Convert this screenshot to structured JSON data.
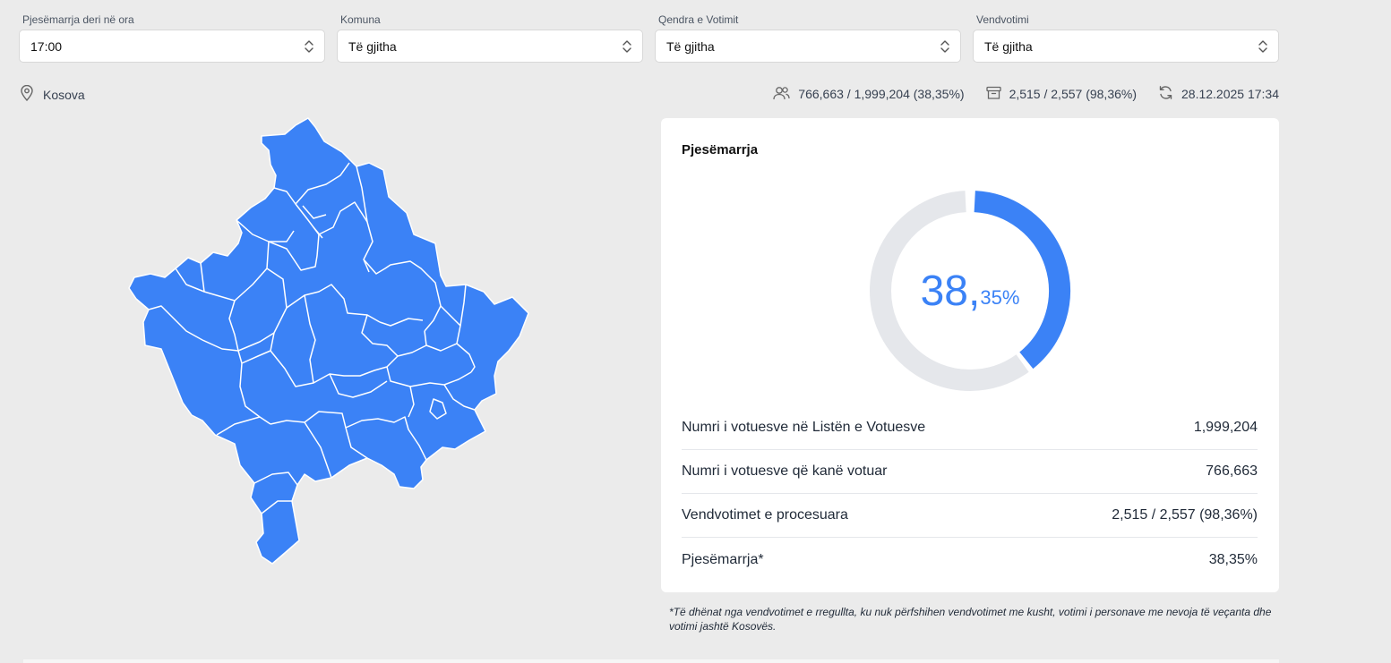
{
  "filters": [
    {
      "label": "Pjesëmarrja deri në ora",
      "value": "17:00"
    },
    {
      "label": "Komuna",
      "value": "Të gjitha"
    },
    {
      "label": "Qendra e Votimit",
      "value": "Të gjitha"
    },
    {
      "label": "Vendvotimi",
      "value": "Të gjitha"
    }
  ],
  "location": {
    "name": "Kosova"
  },
  "stats": {
    "voters": "766,663 / 1,999,204 (38,35%)",
    "stations": "2,515 / 2,557 (98,36%)",
    "updated": "28.12.2025 17:34"
  },
  "card": {
    "title": "Pjesëmarrja",
    "turnout_int": "38,",
    "turnout_dec": "35%",
    "turnout_fraction": 0.3835,
    "rows": [
      {
        "label": "Numri i votuesve në Listën e Votuesve",
        "value": "1,999,204"
      },
      {
        "label": "Numri i votuesve që kanë votuar",
        "value": "766,663"
      },
      {
        "label": "Vendvotimet e procesuara",
        "value": "2,515 / 2,557 (98,36%)"
      },
      {
        "label": "Pjesëmarrja*",
        "value": "38,35%"
      }
    ]
  },
  "footnote": "*Të dhënat nga vendvotimet e rregullta, ku nuk përfshihen vendvotimet me kusht, votimi i personave me nevoja të veçanta dhe votimi jashtë Kosovës.",
  "colors": {
    "accent": "#3b82f6",
    "track": "#e5e7eb",
    "map_fill": "#3b82f6"
  },
  "icons": [
    "chevron-up-down-icon",
    "map-pin-icon",
    "users-icon",
    "archive-box-icon",
    "refresh-icon"
  ]
}
